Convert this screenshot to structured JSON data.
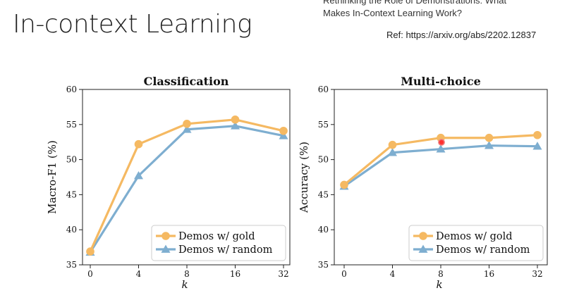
{
  "slide": {
    "title": "In-context Learning",
    "paper_title_lines": [
      "Rethinking the Role of Demonstrations: What",
      "Makes In-Context Learning Work?"
    ],
    "reference": "Ref: https://arxiv.org/abs/2202.12837"
  },
  "colors": {
    "gold": "#f5b962",
    "random": "#7eaed0",
    "axis": "#222222"
  },
  "chart_data": [
    {
      "type": "line",
      "title": "Classification",
      "xlabel": "k",
      "ylabel": "Macro-F1 (%)",
      "categories": [
        "0",
        "4",
        "8",
        "16",
        "32"
      ],
      "ylim": [
        35,
        60
      ],
      "yticks": [
        "35",
        "40",
        "45",
        "50",
        "55",
        "60"
      ],
      "grid": false,
      "legend_position": "bottom-right",
      "series": [
        {
          "name": "Demos w/ gold",
          "marker": "circle",
          "values": [
            36.9,
            52.2,
            55.1,
            55.7,
            54.1
          ]
        },
        {
          "name": "Demos w/ random",
          "marker": "triangle",
          "values": [
            36.8,
            47.7,
            54.3,
            54.8,
            53.4
          ]
        }
      ]
    },
    {
      "type": "line",
      "title": "Multi-choice",
      "xlabel": "k",
      "ylabel": "Accuracy (%)",
      "categories": [
        "0",
        "4",
        "8",
        "16",
        "32"
      ],
      "ylim": [
        35,
        60
      ],
      "yticks": [
        "35",
        "40",
        "45",
        "50",
        "55",
        "60"
      ],
      "grid": false,
      "legend_position": "bottom-right",
      "series": [
        {
          "name": "Demos w/ gold",
          "marker": "circle",
          "values": [
            46.4,
            52.1,
            53.1,
            53.1,
            53.5
          ]
        },
        {
          "name": "Demos w/ random",
          "marker": "triangle",
          "values": [
            46.2,
            51.0,
            51.5,
            52.0,
            51.9
          ]
        }
      ]
    }
  ]
}
